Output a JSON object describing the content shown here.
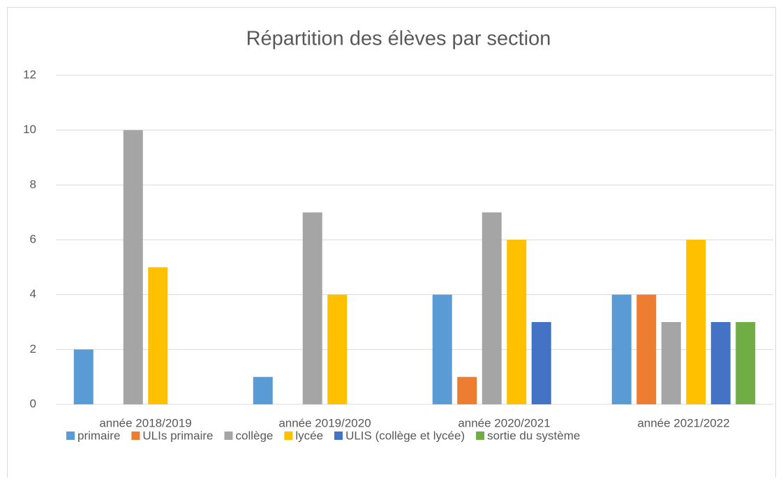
{
  "chart_data": {
    "type": "bar",
    "title": "Répartition des élèves par section",
    "categories": [
      "année 2018/2019",
      "année 2019/2020",
      "année 2020/2021",
      "année 2021/2022"
    ],
    "series": [
      {
        "name": "primaire",
        "color": "#5b9bd5",
        "values": [
          2,
          1,
          4,
          4
        ]
      },
      {
        "name": "ULIs primaire",
        "color": "#ed7d31",
        "values": [
          0,
          0,
          1,
          4
        ]
      },
      {
        "name": "collège",
        "color": "#a5a5a5",
        "values": [
          10,
          7,
          7,
          3
        ]
      },
      {
        "name": "lycée",
        "color": "#ffc000",
        "values": [
          5,
          4,
          6,
          6
        ]
      },
      {
        "name": "ULIS (collège et lycée)",
        "color": "#4472c4",
        "values": [
          0,
          0,
          3,
          3
        ]
      },
      {
        "name": "sortie du système",
        "color": "#70ad47",
        "values": [
          0,
          0,
          0,
          3
        ]
      }
    ],
    "ylim": [
      0,
      12
    ],
    "yticks": [
      0,
      2,
      4,
      6,
      8,
      10,
      12
    ],
    "grid": true,
    "legend": "bottom"
  }
}
